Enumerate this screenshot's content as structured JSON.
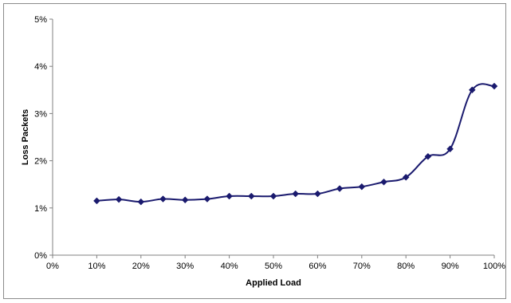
{
  "chart_data": {
    "type": "line",
    "title": "",
    "xlabel": "Applied Load",
    "ylabel": "Loss Packets",
    "xlim": [
      0,
      100
    ],
    "ylim": [
      0,
      5
    ],
    "x_ticks": [
      0,
      10,
      20,
      30,
      40,
      50,
      60,
      70,
      80,
      90,
      100
    ],
    "x_tick_labels": [
      "0%",
      "10%",
      "20%",
      "30%",
      "40%",
      "50%",
      "60%",
      "70%",
      "80%",
      "90%",
      "100%"
    ],
    "y_ticks": [
      0,
      1,
      2,
      3,
      4,
      5
    ],
    "y_tick_labels": [
      "0%",
      "1%",
      "2%",
      "3%",
      "4%",
      "5%"
    ],
    "grid": false,
    "legend": "none",
    "series": [
      {
        "color": "#1a1a6e",
        "marker": "diamond",
        "smooth": true,
        "x": [
          10,
          15,
          20,
          25,
          30,
          35,
          40,
          45,
          50,
          55,
          60,
          65,
          70,
          75,
          80,
          85,
          90,
          95,
          100
        ],
        "y": [
          1.15,
          1.18,
          1.13,
          1.19,
          1.17,
          1.19,
          1.25,
          1.25,
          1.25,
          1.3,
          1.3,
          1.41,
          1.45,
          1.55,
          1.65,
          2.09,
          2.25,
          3.5,
          3.58
        ]
      }
    ]
  }
}
